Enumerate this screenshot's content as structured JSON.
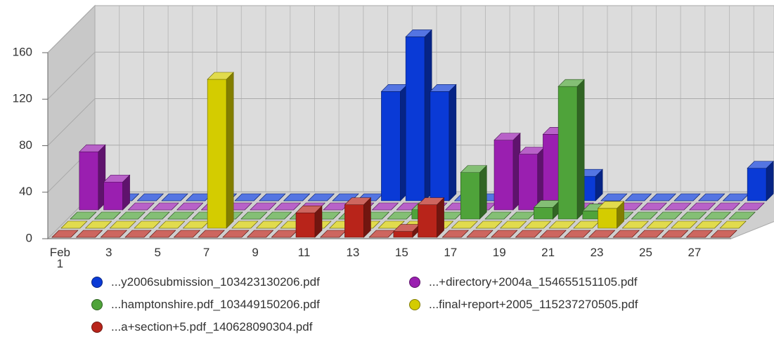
{
  "chart_data": {
    "type": "bar3d",
    "categories": [
      "Feb 1",
      null,
      "3",
      null,
      "5",
      null,
      "7",
      null,
      "9",
      null,
      "11",
      null,
      "13",
      null,
      "15",
      null,
      "17",
      null,
      "19",
      null,
      "21",
      null,
      "23",
      null,
      "25",
      null,
      "27",
      null
    ],
    "series": [
      {
        "name": "...y2006submission_103423130206.pdf",
        "color": "#0a3ad6",
        "values": [
          0,
          0,
          0,
          0,
          0,
          0,
          0,
          0,
          0,
          0,
          0,
          0,
          94,
          141,
          94,
          0,
          0,
          0,
          0,
          0,
          21,
          0,
          0,
          0,
          0,
          0,
          0,
          28
        ]
      },
      {
        "name": "...+directory+2004a_154655151105.pdf",
        "color": "#9a1fb0",
        "values": [
          50,
          24,
          0,
          0,
          0,
          0,
          0,
          0,
          0,
          0,
          0,
          0,
          0,
          0,
          0,
          0,
          0,
          60,
          48,
          65,
          0,
          0,
          0,
          0,
          0,
          0,
          0,
          0
        ]
      },
      {
        "name": "...hamptonshire.pdf_103449150206.pdf",
        "color": "#4fa33a",
        "values": [
          0,
          0,
          0,
          0,
          0,
          0,
          0,
          0,
          0,
          0,
          0,
          0,
          0,
          0,
          8,
          0,
          40,
          0,
          0,
          10,
          114,
          7,
          0,
          0,
          0,
          0,
          0,
          0
        ]
      },
      {
        "name": "...final+report+2005_115237270505.pdf",
        "color": "#d4cc00",
        "values": [
          0,
          0,
          0,
          0,
          0,
          0,
          128,
          0,
          0,
          0,
          0,
          0,
          0,
          0,
          0,
          0,
          0,
          0,
          0,
          0,
          0,
          0,
          17,
          0,
          0,
          0,
          0,
          0
        ]
      },
      {
        "name": "...a+section+5.pdf_140628090304.pdf",
        "color": "#b8241a",
        "values": [
          0,
          0,
          0,
          0,
          0,
          0,
          0,
          0,
          0,
          0,
          21,
          0,
          28,
          0,
          5,
          28,
          0,
          0,
          0,
          0,
          0,
          0,
          0,
          0,
          0,
          0,
          0,
          0
        ]
      }
    ],
    "ylim": [
      0,
      160
    ],
    "yticks": [
      0,
      40,
      80,
      120,
      160
    ],
    "grid": true
  }
}
